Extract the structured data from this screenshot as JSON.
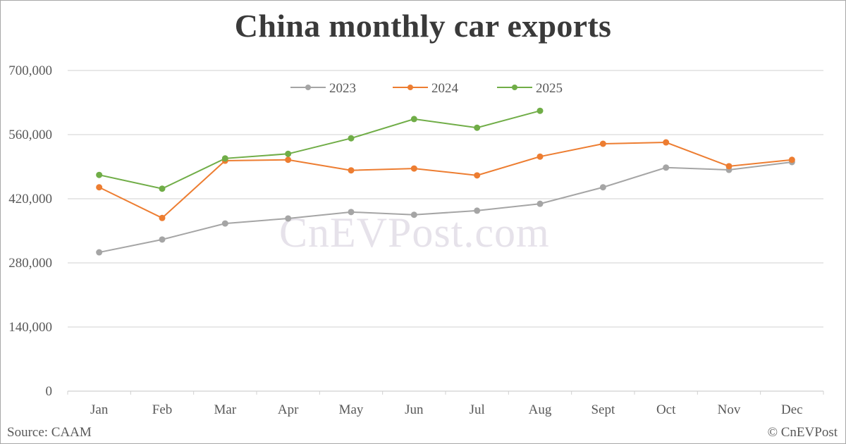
{
  "title": "China monthly car exports",
  "watermark": "CnEVPost.com",
  "source": "Source: CAAM",
  "credit": "© CnEVPost",
  "colors": {
    "2023": "#a5a5a5",
    "2024": "#ed7d31",
    "2025": "#70ad47",
    "grid": "#d9d9d9",
    "text": "#595959"
  },
  "chart_data": {
    "type": "line",
    "title": "China monthly car exports",
    "xlabel": "",
    "ylabel": "",
    "ylim": [
      0,
      700000
    ],
    "yticks": [
      0,
      140000,
      280000,
      420000,
      560000,
      700000
    ],
    "ytick_labels": [
      "0",
      "140,000",
      "280,000",
      "420,000",
      "560,000",
      "700,000"
    ],
    "grid": true,
    "legend_position": "top",
    "categories": [
      "Jan",
      "Feb",
      "Mar",
      "Apr",
      "May",
      "Jun",
      "Jul",
      "Aug",
      "Sept",
      "Oct",
      "Nov",
      "Dec"
    ],
    "series": [
      {
        "name": "2023",
        "color": "#a5a5a5",
        "values": [
          303000,
          331000,
          366000,
          377000,
          391000,
          385000,
          394000,
          409000,
          445000,
          488000,
          483000,
          500000
        ]
      },
      {
        "name": "2024",
        "color": "#ed7d31",
        "values": [
          445000,
          378000,
          503000,
          505000,
          482000,
          486000,
          471000,
          512000,
          540000,
          543000,
          491000,
          505000
        ]
      },
      {
        "name": "2025",
        "color": "#70ad47",
        "values": [
          472000,
          442000,
          508000,
          518000,
          552000,
          594000,
          575000,
          612000,
          null,
          null,
          null,
          null
        ]
      }
    ],
    "annotations": [
      "Source: CAAM",
      "© CnEVPost",
      "CnEVPost.com"
    ]
  }
}
